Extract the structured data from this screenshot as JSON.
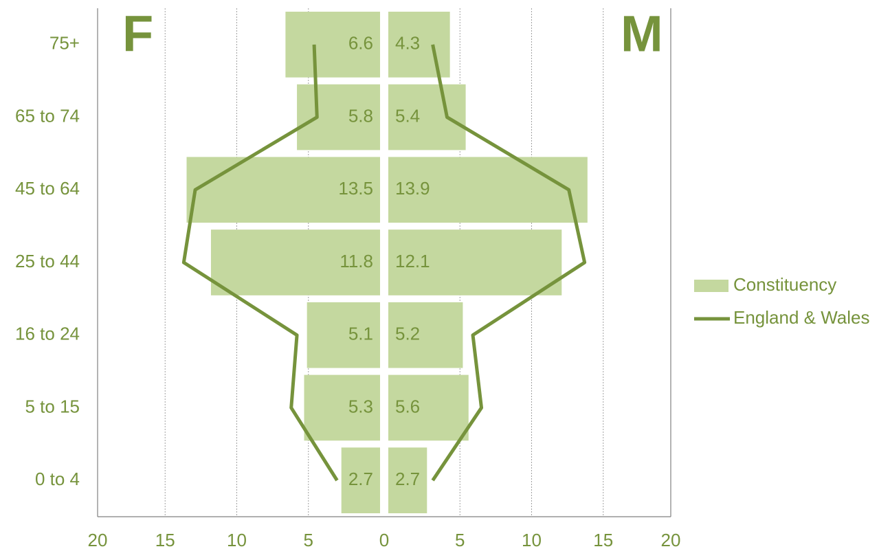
{
  "chart_data": {
    "type": "bar",
    "orientation": "horizontal-population-pyramid",
    "categories": [
      "0 to 4",
      "5 to 15",
      "16 to 24",
      "25 to 44",
      "45 to 64",
      "65 to 74",
      "75+"
    ],
    "sides": {
      "left": "F",
      "right": "M"
    },
    "series": [
      {
        "name": "Constituency",
        "kind": "bar",
        "female": [
          2.7,
          5.3,
          5.1,
          11.8,
          13.5,
          5.8,
          6.6
        ],
        "male": [
          2.7,
          5.6,
          5.2,
          12.1,
          13.9,
          5.4,
          4.3
        ]
      },
      {
        "name": "England & Wales",
        "kind": "line",
        "female": [
          3.0,
          6.2,
          5.8,
          13.7,
          12.9,
          4.4,
          4.6
        ],
        "male": [
          3.1,
          6.5,
          5.9,
          13.7,
          12.6,
          4.1,
          3.1
        ]
      }
    ],
    "x_ticks": [
      20,
      15,
      10,
      5,
      0,
      5,
      10,
      15,
      20
    ],
    "xlim": [
      -20,
      20
    ],
    "grid": "vertical-dotted",
    "legend_position": "right",
    "colors": {
      "bar": "#c4d89f",
      "line": "#76933c",
      "text": "#76933c",
      "axis": "#808080",
      "grid": "#a0a0a0"
    }
  }
}
